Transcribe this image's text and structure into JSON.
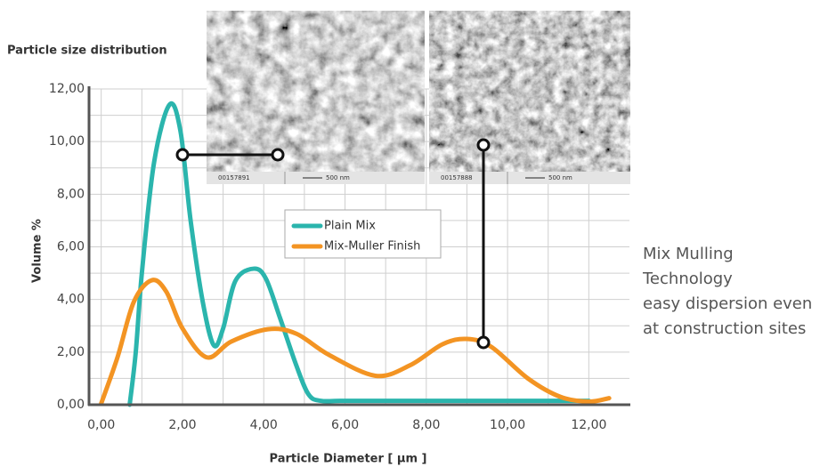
{
  "chart_data": {
    "type": "line",
    "title": "Particle size distribution",
    "xlabel": "Particle Diameter [ µm ]",
    "ylabel": "Volume %",
    "xlim": [
      -0.3,
      13
    ],
    "ylim": [
      0,
      12
    ],
    "xticks": [
      {
        "value": 0,
        "label": "0,00"
      },
      {
        "value": 2,
        "label": "2,00"
      },
      {
        "value": 4,
        "label": "4,00"
      },
      {
        "value": 6,
        "label": "6,00"
      },
      {
        "value": 8,
        "label": "8,00"
      },
      {
        "value": 10,
        "label": "10,00"
      },
      {
        "value": 12,
        "label": "12,00"
      }
    ],
    "yticks": [
      {
        "value": 0,
        "label": "0,00"
      },
      {
        "value": 2,
        "label": "2,00"
      },
      {
        "value": 4,
        "label": "4,00"
      },
      {
        "value": 6,
        "label": "6,00"
      },
      {
        "value": 8,
        "label": "8,00"
      },
      {
        "value": 10,
        "label": "10,00"
      },
      {
        "value": 12,
        "label": "12,00"
      }
    ],
    "xgrid": [
      1,
      3,
      5,
      7,
      9,
      11
    ],
    "ygrid": [
      1,
      3,
      5,
      7,
      9,
      11
    ],
    "grid": true,
    "series": [
      {
        "name": "Plain Mix",
        "color": "#2bb5ad",
        "x": [
          0.7,
          0.85,
          1.0,
          1.3,
          1.68,
          1.95,
          2.2,
          2.5,
          2.77,
          3.0,
          3.3,
          3.75,
          4.05,
          4.4,
          4.8,
          5.1,
          5.4,
          6,
          8,
          10,
          12
        ],
        "values": [
          0,
          2,
          5,
          9.2,
          11.4,
          10.4,
          7,
          3.9,
          2.26,
          2.9,
          4.7,
          5.17,
          4.8,
          3.3,
          1.5,
          0.4,
          0.15,
          0.15,
          0.15,
          0.15,
          0.15
        ]
      },
      {
        "name": "Mix-Muller Finish",
        "color": "#f39423",
        "x": [
          0,
          0.4,
          0.8,
          1.24,
          1.6,
          2.0,
          2.6,
          3.2,
          4.1,
          4.8,
          5.6,
          6.75,
          7.6,
          8.4,
          9.0,
          9.6,
          10.5,
          11.3,
          12,
          12.5
        ],
        "values": [
          0.05,
          1.8,
          3.9,
          4.73,
          4.3,
          2.9,
          1.8,
          2.4,
          2.87,
          2.7,
          1.9,
          1.1,
          1.5,
          2.3,
          2.5,
          2.2,
          1.0,
          0.3,
          0.12,
          0.25
        ]
      }
    ],
    "legend": "center",
    "annotation": [
      "Mix Mulling",
      "Technology",
      "easy dispersion even",
      "at construction sites"
    ],
    "images": [
      {
        "id": "00157891",
        "scale": "500 nm"
      },
      {
        "id": "00157888",
        "scale": "500 nm"
      }
    ]
  }
}
